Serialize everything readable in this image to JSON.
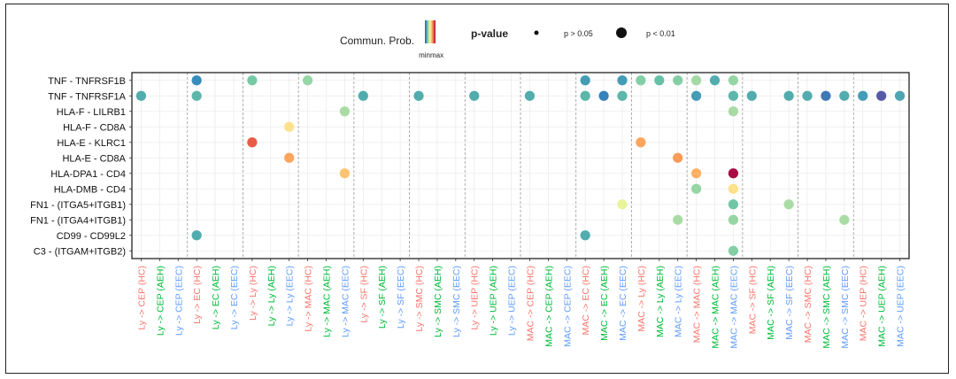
{
  "chart_data": {
    "type": "scatter",
    "legend": {
      "color_title": "Commun. Prob.",
      "color_label": "min",
      "color_label_max": "max",
      "size_title": "p-value",
      "size_items": [
        {
          "label": "p > 0.05",
          "size": "small"
        },
        {
          "label": "p < 0.01",
          "size": "large"
        }
      ],
      "placement": "top-center"
    },
    "grid": true,
    "y_categories": [
      "TNF - TNFRSF1B",
      "TNF - TNFRSF1A",
      "HLA-F - LILRB1",
      "HLA-F - CD8A",
      "HLA-E - KLRC1",
      "HLA-E - CD8A",
      "HLA-DPA1 - CD4",
      "HLA-DMB - CD4",
      "FN1 - (ITGA5+ITGB1)",
      "FN1 - (ITGA4+ITGB1)",
      "CD99 - CD99L2",
      "C3 - (ITGAM+ITGB2)"
    ],
    "x_categories": [
      {
        "label": "Ly -> CEP (HC)",
        "color": "#f8766d"
      },
      {
        "label": "Ly -> CEP (AEH)",
        "color": "#00ba38"
      },
      {
        "label": "Ly -> CEP (EEC)",
        "color": "#619cff"
      },
      {
        "label": "Ly -> EC (HC)",
        "color": "#f8766d"
      },
      {
        "label": "Ly -> EC (AEH)",
        "color": "#00ba38"
      },
      {
        "label": "Ly -> EC (EEC)",
        "color": "#619cff"
      },
      {
        "label": "Ly -> Ly (HC)",
        "color": "#f8766d"
      },
      {
        "label": "Ly -> Ly (AEH)",
        "color": "#00ba38"
      },
      {
        "label": "Ly -> Ly (EEC)",
        "color": "#619cff"
      },
      {
        "label": "Ly -> MAC (HC)",
        "color": "#f8766d"
      },
      {
        "label": "Ly -> MAC (AEH)",
        "color": "#00ba38"
      },
      {
        "label": "Ly -> MAC (EEC)",
        "color": "#619cff"
      },
      {
        "label": "Ly -> SF (HC)",
        "color": "#f8766d"
      },
      {
        "label": "Ly -> SF (AEH)",
        "color": "#00ba38"
      },
      {
        "label": "Ly -> SF (EEC)",
        "color": "#619cff"
      },
      {
        "label": "Ly -> SMC (HC)",
        "color": "#f8766d"
      },
      {
        "label": "Ly -> SMC (AEH)",
        "color": "#00ba38"
      },
      {
        "label": "Ly -> SMC (EEC)",
        "color": "#619cff"
      },
      {
        "label": "Ly -> UEP (HC)",
        "color": "#f8766d"
      },
      {
        "label": "Ly -> UEP (AEH)",
        "color": "#00ba38"
      },
      {
        "label": "Ly -> UEP (EEC)",
        "color": "#619cff"
      },
      {
        "label": "MAC -> CEP (HC)",
        "color": "#f8766d"
      },
      {
        "label": "MAC -> CEP (AEH)",
        "color": "#00ba38"
      },
      {
        "label": "MAC -> CEP (EEC)",
        "color": "#619cff"
      },
      {
        "label": "MAC -> EC (HC)",
        "color": "#f8766d"
      },
      {
        "label": "MAC -> EC (AEH)",
        "color": "#00ba38"
      },
      {
        "label": "MAC -> EC (EEC)",
        "color": "#619cff"
      },
      {
        "label": "MAC -> Ly (HC)",
        "color": "#f8766d"
      },
      {
        "label": "MAC -> Ly (AEH)",
        "color": "#00ba38"
      },
      {
        "label": "MAC -> Ly (EEC)",
        "color": "#619cff"
      },
      {
        "label": "MAC -> MAC (HC)",
        "color": "#f8766d"
      },
      {
        "label": "MAC -> MAC (AEH)",
        "color": "#00ba38"
      },
      {
        "label": "MAC -> MAC (EEC)",
        "color": "#619cff"
      },
      {
        "label": "MAC -> SF (HC)",
        "color": "#f8766d"
      },
      {
        "label": "MAC -> SF (AEH)",
        "color": "#00ba38"
      },
      {
        "label": "MAC -> SF (EEC)",
        "color": "#619cff"
      },
      {
        "label": "MAC -> SMC (HC)",
        "color": "#f8766d"
      },
      {
        "label": "MAC -> SMC (AEH)",
        "color": "#00ba38"
      },
      {
        "label": "MAC -> SMC (EEC)",
        "color": "#619cff"
      },
      {
        "label": "MAC -> UEP (HC)",
        "color": "#f8766d"
      },
      {
        "label": "MAC -> UEP (AEH)",
        "color": "#00ba38"
      },
      {
        "label": "MAC -> UEP (EEC)",
        "color": "#619cff"
      }
    ],
    "group_separators_after_column": [
      2,
      5,
      8,
      11,
      14,
      17,
      20,
      23,
      26,
      29,
      32,
      35,
      38
    ],
    "colorscale": [
      "#5e4fa2",
      "#3288bd",
      "#66c2a5",
      "#abdda4",
      "#e6f598",
      "#fee08b",
      "#fdae61",
      "#f46d43",
      "#d53e4f",
      "#9e0142"
    ],
    "points": [
      {
        "x": "Ly -> EC (HC)",
        "y": "TNF - TNFRSF1B",
        "prob": 0.12,
        "p_large": true
      },
      {
        "x": "Ly -> Ly (HC)",
        "y": "TNF - TNFRSF1B",
        "prob": 0.25,
        "p_large": true
      },
      {
        "x": "Ly -> MAC (HC)",
        "y": "TNF - TNFRSF1B",
        "prob": 0.3,
        "p_large": true
      },
      {
        "x": "MAC -> EC (HC)",
        "y": "TNF - TNFRSF1B",
        "prob": 0.15,
        "p_large": true
      },
      {
        "x": "MAC -> EC (EEC)",
        "y": "TNF - TNFRSF1B",
        "prob": 0.15,
        "p_large": true
      },
      {
        "x": "MAC -> Ly (HC)",
        "y": "TNF - TNFRSF1B",
        "prob": 0.27,
        "p_large": true
      },
      {
        "x": "MAC -> Ly (AEH)",
        "y": "TNF - TNFRSF1B",
        "prob": 0.22,
        "p_large": true
      },
      {
        "x": "MAC -> Ly (EEC)",
        "y": "TNF - TNFRSF1B",
        "prob": 0.27,
        "p_large": true
      },
      {
        "x": "MAC -> MAC (HC)",
        "y": "TNF - TNFRSF1B",
        "prob": 0.32,
        "p_large": true
      },
      {
        "x": "MAC -> MAC (AEH)",
        "y": "TNF - TNFRSF1B",
        "prob": 0.18,
        "p_large": true
      },
      {
        "x": "MAC -> MAC (EEC)",
        "y": "TNF - TNFRSF1B",
        "prob": 0.3,
        "p_large": true
      },
      {
        "x": "Ly -> CEP (HC)",
        "y": "TNF - TNFRSF1A",
        "prob": 0.18,
        "p_large": true
      },
      {
        "x": "Ly -> EC (HC)",
        "y": "TNF - TNFRSF1A",
        "prob": 0.2,
        "p_large": true
      },
      {
        "x": "Ly -> SF (HC)",
        "y": "TNF - TNFRSF1A",
        "prob": 0.18,
        "p_large": true
      },
      {
        "x": "Ly -> SMC (HC)",
        "y": "TNF - TNFRSF1A",
        "prob": 0.18,
        "p_large": true
      },
      {
        "x": "Ly -> UEP (HC)",
        "y": "TNF - TNFRSF1A",
        "prob": 0.18,
        "p_large": true
      },
      {
        "x": "MAC -> CEP (HC)",
        "y": "TNF - TNFRSF1A",
        "prob": 0.18,
        "p_large": true
      },
      {
        "x": "MAC -> EC (HC)",
        "y": "TNF - TNFRSF1A",
        "prob": 0.2,
        "p_large": true
      },
      {
        "x": "MAC -> EC (AEH)",
        "y": "TNF - TNFRSF1A",
        "prob": 0.1,
        "p_large": true
      },
      {
        "x": "MAC -> EC (EEC)",
        "y": "TNF - TNFRSF1A",
        "prob": 0.2,
        "p_large": true
      },
      {
        "x": "MAC -> MAC (HC)",
        "y": "TNF - TNFRSF1A",
        "prob": 0.15,
        "p_large": true
      },
      {
        "x": "MAC -> MAC (EEC)",
        "y": "TNF - TNFRSF1A",
        "prob": 0.2,
        "p_large": true
      },
      {
        "x": "MAC -> SF (HC)",
        "y": "TNF - TNFRSF1A",
        "prob": 0.18,
        "p_large": true
      },
      {
        "x": "MAC -> SF (EEC)",
        "y": "TNF - TNFRSF1A",
        "prob": 0.18,
        "p_large": true
      },
      {
        "x": "MAC -> SMC (HC)",
        "y": "TNF - TNFRSF1A",
        "prob": 0.18,
        "p_large": true
      },
      {
        "x": "MAC -> SMC (AEH)",
        "y": "TNF - TNFRSF1A",
        "prob": 0.08,
        "p_large": true
      },
      {
        "x": "MAC -> SMC (EEC)",
        "y": "TNF - TNFRSF1A",
        "prob": 0.18,
        "p_large": true
      },
      {
        "x": "MAC -> UEP (HC)",
        "y": "TNF - TNFRSF1A",
        "prob": 0.15,
        "p_large": true
      },
      {
        "x": "MAC -> UEP (AEH)",
        "y": "TNF - TNFRSF1A",
        "prob": 0.02,
        "p_large": true
      },
      {
        "x": "MAC -> UEP (EEC)",
        "y": "TNF - TNFRSF1A",
        "prob": 0.17,
        "p_large": true
      },
      {
        "x": "Ly -> MAC (EEC)",
        "y": "HLA-F - LILRB1",
        "prob": 0.33,
        "p_large": true
      },
      {
        "x": "MAC -> MAC (EEC)",
        "y": "HLA-F - LILRB1",
        "prob": 0.33,
        "p_large": true
      },
      {
        "x": "Ly -> Ly (EEC)",
        "y": "HLA-F - CD8A",
        "prob": 0.55,
        "p_large": true
      },
      {
        "x": "Ly -> Ly (HC)",
        "y": "HLA-E - KLRC1",
        "prob": 0.82,
        "p_large": true
      },
      {
        "x": "MAC -> Ly (HC)",
        "y": "HLA-E - KLRC1",
        "prob": 0.68,
        "p_large": true
      },
      {
        "x": "Ly -> Ly (EEC)",
        "y": "HLA-E - CD8A",
        "prob": 0.68,
        "p_large": true
      },
      {
        "x": "MAC -> Ly (EEC)",
        "y": "HLA-E - CD8A",
        "prob": 0.7,
        "p_large": true
      },
      {
        "x": "Ly -> MAC (EEC)",
        "y": "HLA-DPA1 - CD4",
        "prob": 0.62,
        "p_large": true
      },
      {
        "x": "MAC -> MAC (HC)",
        "y": "HLA-DPA1 - CD4",
        "prob": 0.66,
        "p_large": true
      },
      {
        "x": "MAC -> MAC (EEC)",
        "y": "HLA-DPA1 - CD4",
        "prob": 0.98,
        "p_large": true
      },
      {
        "x": "MAC -> MAC (HC)",
        "y": "HLA-DMB - CD4",
        "prob": 0.3,
        "p_large": true
      },
      {
        "x": "MAC -> MAC (EEC)",
        "y": "HLA-DMB - CD4",
        "prob": 0.55,
        "p_large": true
      },
      {
        "x": "MAC -> EC (EEC)",
        "y": "FN1 - (ITGA5+ITGB1)",
        "prob": 0.45,
        "p_large": true
      },
      {
        "x": "MAC -> MAC (EEC)",
        "y": "FN1 - (ITGA5+ITGB1)",
        "prob": 0.24,
        "p_large": true
      },
      {
        "x": "MAC -> SF (EEC)",
        "y": "FN1 - (ITGA5+ITGB1)",
        "prob": 0.33,
        "p_large": true
      },
      {
        "x": "MAC -> Ly (EEC)",
        "y": "FN1 - (ITGA4+ITGB1)",
        "prob": 0.33,
        "p_large": true
      },
      {
        "x": "MAC -> MAC (EEC)",
        "y": "FN1 - (ITGA4+ITGB1)",
        "prob": 0.3,
        "p_large": true
      },
      {
        "x": "MAC -> SMC (EEC)",
        "y": "FN1 - (ITGA4+ITGB1)",
        "prob": 0.33,
        "p_large": true
      },
      {
        "x": "Ly -> EC (HC)",
        "y": "CD99 - CD99L2",
        "prob": 0.18,
        "p_large": true
      },
      {
        "x": "MAC -> EC (HC)",
        "y": "CD99 - CD99L2",
        "prob": 0.18,
        "p_large": true
      },
      {
        "x": "MAC -> MAC (EEC)",
        "y": "C3 - (ITGAM+ITGB2)",
        "prob": 0.27,
        "p_large": true
      }
    ]
  }
}
